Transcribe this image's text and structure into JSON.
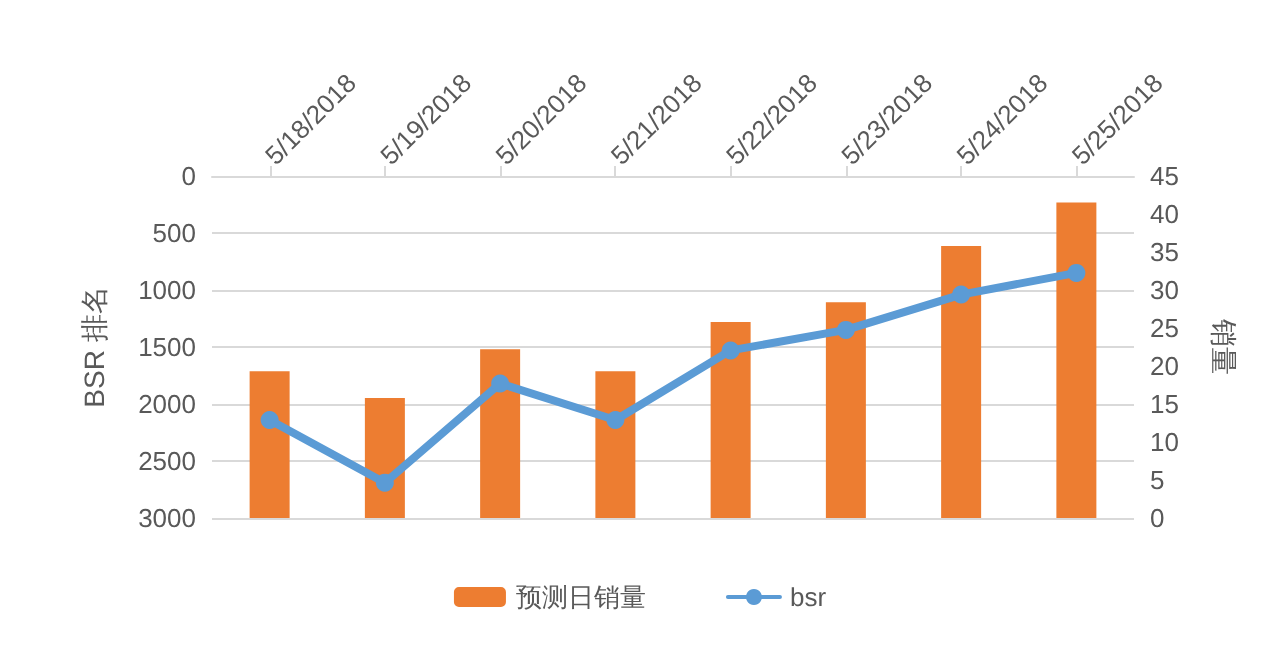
{
  "chart_data": {
    "type": "bar",
    "categories": [
      "5/18/2018",
      "5/19/2018",
      "5/20/2018",
      "5/21/2018",
      "5/22/2018",
      "5/23/2018",
      "5/24/2018",
      "5/25/2018"
    ],
    "ylabel": "BSR 排名",
    "y2label": "销量",
    "ylim": [
      3000,
      0
    ],
    "yticks": [
      0,
      500,
      1000,
      1500,
      2000,
      2500,
      3000
    ],
    "y2lim": [
      0,
      45
    ],
    "y2ticks": [
      0,
      5,
      10,
      15,
      20,
      25,
      30,
      35,
      40,
      45
    ],
    "series": [
      {
        "name": "预测日销量",
        "axis": "y2",
        "color": "#ed7d31",
        "values": [
          19.3,
          15.8,
          22.2,
          19.3,
          25.8,
          28.4,
          35.8,
          41.5
        ]
      },
      {
        "name": "bsr",
        "type": "line",
        "color": "#5b9bd5",
        "values": [
          2140,
          2690,
          1820,
          2140,
          1530,
          1350,
          1040,
          850
        ]
      }
    ],
    "grid": "y",
    "legend": "bottom",
    "marker": "circle",
    "line_style": "solid"
  }
}
